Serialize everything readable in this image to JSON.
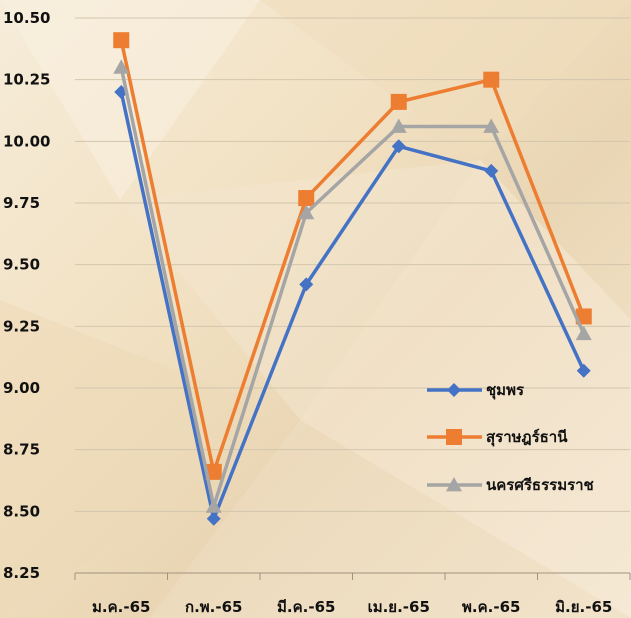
{
  "chart_data": {
    "type": "line",
    "title": "",
    "xlabel": "",
    "ylabel": "",
    "categories": [
      "ม.ค.-65",
      "ก.พ.-65",
      "มี.ค.-65",
      "เม.ย.-65",
      "พ.ค.-65",
      "มิ.ย.-65"
    ],
    "ylim": [
      8.25,
      10.5
    ],
    "yticks": [
      "10.50",
      "10.25",
      "10.00",
      "9.75",
      "9.50",
      "9.25",
      "9.00",
      "8.75",
      "8.50",
      "8.25"
    ],
    "grid": true,
    "legend_position": "bottom-right",
    "series": [
      {
        "name": "ชุมพร",
        "values": [
          10.2,
          8.47,
          9.42,
          9.98,
          9.88,
          9.07
        ],
        "color": "#4472c4",
        "marker": "diamond"
      },
      {
        "name": "สุราษฎร์ธานี",
        "values": [
          10.41,
          8.66,
          9.77,
          10.16,
          10.25,
          9.29
        ],
        "color": "#ed7d31",
        "marker": "square"
      },
      {
        "name": "นครศรีธรรมราช",
        "values": [
          10.3,
          8.52,
          9.71,
          10.06,
          10.06,
          9.22
        ],
        "color": "#a5a5a5",
        "marker": "triangle"
      }
    ]
  }
}
